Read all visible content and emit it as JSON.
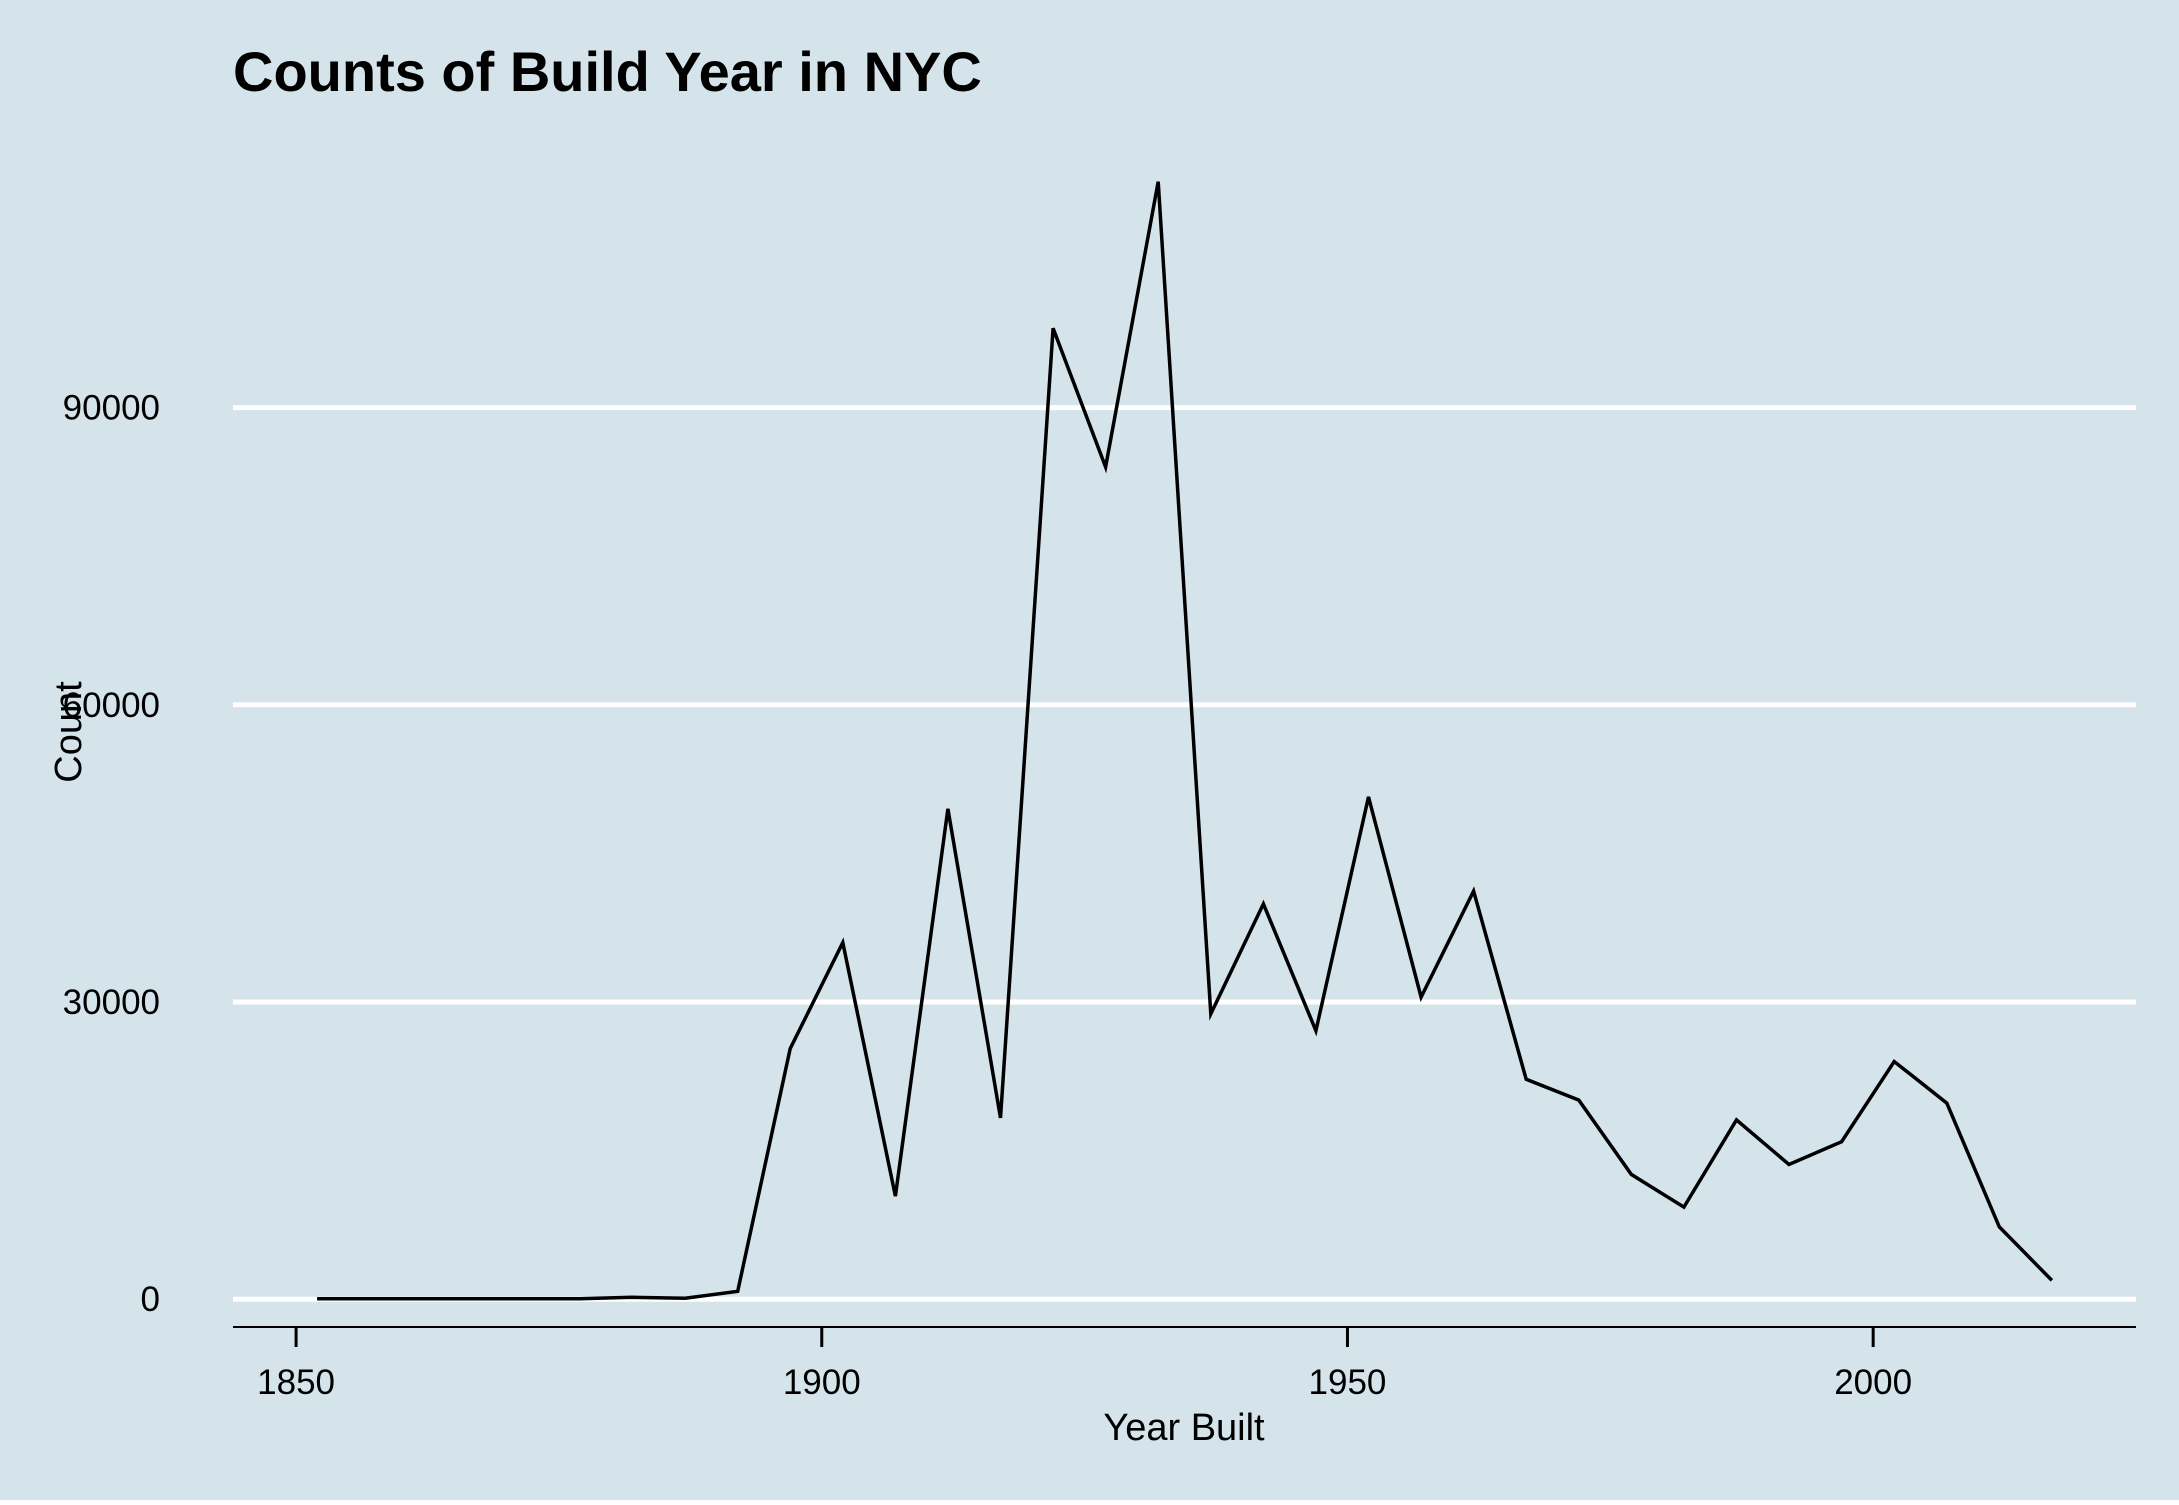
{
  "chart_data": {
    "type": "line",
    "title": "Counts of Build Year in NYC",
    "xlabel": "Year Built",
    "ylabel": "Count",
    "xlim": [
      1844,
      2025
    ],
    "ylim": [
      -2500,
      116000
    ],
    "x_ticks": [
      1850,
      1900,
      1950,
      2000
    ],
    "y_ticks": [
      0,
      30000,
      60000,
      90000
    ],
    "grid": "horizontal major",
    "legend": "none",
    "colors": {
      "panel_background": "#d5e4eb",
      "grid": "#ffffff",
      "line": "#000000"
    },
    "series": [
      {
        "x": [
          1852,
          1857,
          1862,
          1867,
          1872,
          1877,
          1882,
          1887,
          1892,
          1897,
          1902,
          1907,
          1912,
          1917,
          1922,
          1927,
          1932,
          1937,
          1942,
          1947,
          1952,
          1957,
          1962,
          1967,
          1972,
          1977,
          1982,
          1987,
          1992,
          1997,
          2002,
          2007,
          2012,
          2017
        ],
        "values": [
          50,
          50,
          50,
          50,
          50,
          50,
          200,
          100,
          800,
          25300,
          36000,
          10400,
          49500,
          18300,
          98000,
          84000,
          112800,
          28800,
          39900,
          27100,
          50700,
          30500,
          41200,
          22200,
          20100,
          12600,
          9300,
          18100,
          13600,
          15900,
          24000,
          19800,
          7300,
          1900
        ]
      }
    ]
  }
}
